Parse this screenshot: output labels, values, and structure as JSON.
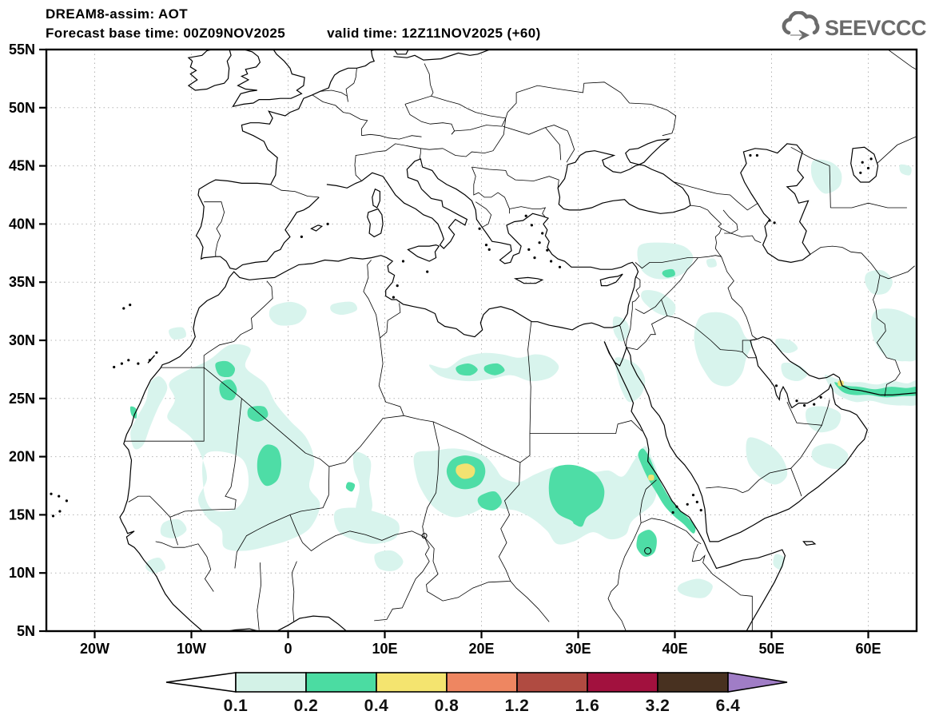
{
  "header": {
    "model_title": "DREAM8-assim: AOT",
    "forecast_base_line": "Forecast base time: 00Z09NOV2025",
    "valid_time_line": "valid time: 12Z11NOV2025 (+60)"
  },
  "logo": {
    "text": "SEEVCCC",
    "icon": "cloud-arrow-icon",
    "color": "#6b6b6b"
  },
  "map": {
    "lat_tick_labels": [
      "55N",
      "50N",
      "45N",
      "40N",
      "35N",
      "30N",
      "25N",
      "20N",
      "15N",
      "10N",
      "5N"
    ],
    "lon_tick_labels": [
      "20W",
      "10W",
      "0",
      "10E",
      "20E",
      "30E",
      "40E",
      "50E",
      "60E"
    ],
    "grid_style": "dotted graticule, 5-degree latitude / 10-degree longitude",
    "frame_color": "#000000",
    "grid_color": "#b5b5b5"
  },
  "legend": {
    "variable": "AOT",
    "tick_values": [
      "0.1",
      "0.2",
      "0.4",
      "0.8",
      "1.2",
      "1.6",
      "3.2",
      "6.4"
    ],
    "segment_colors": [
      "#d3f2e7",
      "#4bdca2",
      "#f4e46f",
      "#ee8661",
      "#b04b41",
      "#a2113e",
      "#483120"
    ],
    "below_min_color": "#ffffff",
    "above_max_color": "#a07dc6",
    "outline_color": "#000000"
  },
  "chart_data": {
    "type": "filled-contour-map",
    "title": "DREAM8-assim: AOT",
    "subtitle": "Forecast base time: 00Z09NOV2025  valid time: 12Z11NOV2025 (+60)",
    "extent": {
      "lon": [
        -25,
        65
      ],
      "lat": [
        5,
        55
      ]
    },
    "contour_levels": [
      0.1,
      0.2,
      0.4,
      0.8,
      1.2,
      1.6,
      3.2,
      6.4
    ],
    "fill_colors_used_on_map": [
      "#d8f4ed",
      "#4edda6",
      "#f2e271"
    ],
    "features": [
      {
        "region": "Chad / Bodele depression",
        "approx_lon": 18.3,
        "approx_lat": 18.7,
        "aot": "0.4-0.8 peak inside 0.2-0.4 ring"
      },
      {
        "region": "Central Sudan",
        "approx_lon": 30.0,
        "approx_lat": 16.5,
        "aot": "0.2-0.4"
      },
      {
        "region": "North Mali / South Algeria",
        "approx_lon": -6.0,
        "approx_lat": 26.0,
        "aot": "0.2-0.4 patches"
      },
      {
        "region": "Mali",
        "approx_lon": -1.5,
        "approx_lat": 19.0,
        "aot": "0.2-0.4"
      },
      {
        "region": "Central Libya band",
        "approx_lon": 20.5,
        "approx_lat": 27.5,
        "aot": "0.2-0.4 cores in 0.1-0.2 band"
      },
      {
        "region": "Eritrean Red Sea coast",
        "approx_lon": 38.0,
        "approx_lat": 17.0,
        "aot": "0.2-0.4 with tiny 0.4-0.8 speck"
      },
      {
        "region": "Strait of Hormuz / Gulf of Oman",
        "approx_lon": 58.5,
        "approx_lat": 25.6,
        "aot": "0.2-0.4 streak with tiny 0.4-0.8 speck"
      },
      {
        "region": "Syria / SE Turkey, N Saudi, SE Iran, east of Caspian",
        "aot": "0.1-0.2 patches"
      },
      {
        "region": "Background Sahara / Sahel / Arabia haze",
        "aot": "0.1-0.2"
      }
    ]
  }
}
